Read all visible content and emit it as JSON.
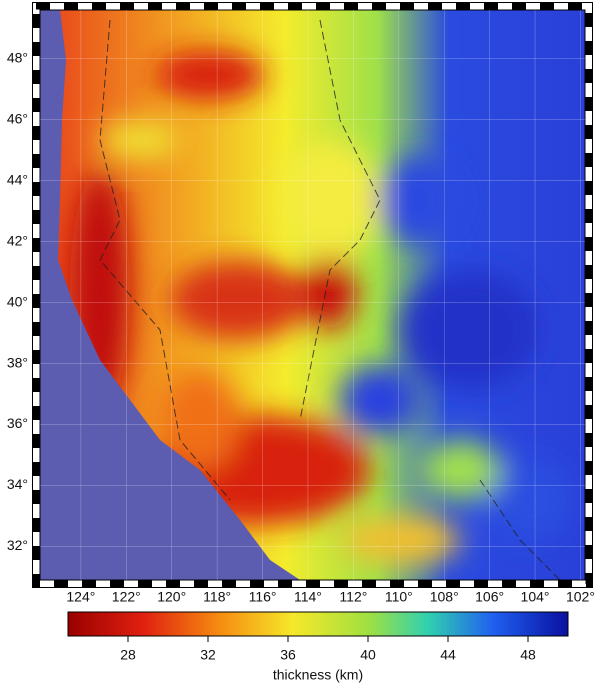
{
  "map": {
    "lat_range": [
      30.9,
      49.6
    ],
    "lon_range": [
      125.8,
      101.8
    ],
    "lat_ticks": [
      {
        "value": 32,
        "label": "32°"
      },
      {
        "value": 34,
        "label": "34°"
      },
      {
        "value": 36,
        "label": "36°"
      },
      {
        "value": 38,
        "label": "38°"
      },
      {
        "value": 40,
        "label": "40°"
      },
      {
        "value": 42,
        "label": "42°"
      },
      {
        "value": 44,
        "label": "44°"
      },
      {
        "value": 46,
        "label": "46°"
      },
      {
        "value": 48,
        "label": "48°"
      }
    ],
    "lon_ticks": [
      {
        "value": 124,
        "label": "124°"
      },
      {
        "value": 122,
        "label": "122°"
      },
      {
        "value": 120,
        "label": "120°"
      },
      {
        "value": 118,
        "label": "118°"
      },
      {
        "value": 116,
        "label": "116°"
      },
      {
        "value": 114,
        "label": "114°"
      },
      {
        "value": 112,
        "label": "112°"
      },
      {
        "value": 110,
        "label": "110°"
      },
      {
        "value": 108,
        "label": "108°"
      },
      {
        "value": 106,
        "label": "106°"
      },
      {
        "value": 104,
        "label": "104°"
      },
      {
        "value": 102,
        "label": "102°"
      }
    ],
    "colorbar": {
      "label": "thickness (km)",
      "range": [
        25,
        50
      ],
      "ticks": [
        28,
        32,
        36,
        40,
        44,
        48
      ]
    }
  }
}
